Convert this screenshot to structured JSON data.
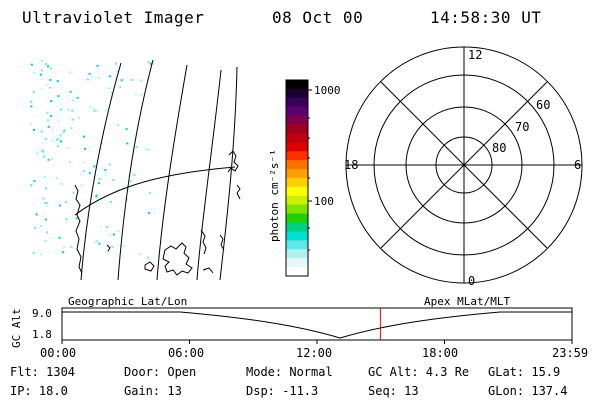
{
  "header": {
    "instrument": "Ultraviolet Imager",
    "date": "08 Oct 00",
    "time": "14:58:30 UT"
  },
  "colorbar": {
    "unit_label": "photon cm⁻²s⁻¹",
    "ticks": [
      "1000",
      "100"
    ],
    "colors": [
      "#000000",
      "#1a0030",
      "#3a0058",
      "#5a0070",
      "#80004a",
      "#a00020",
      "#c00010",
      "#e00000",
      "#ff3000",
      "#ff7000",
      "#ffa000",
      "#ffd000",
      "#ffff00",
      "#c8f000",
      "#80e000",
      "#20d000",
      "#00d080",
      "#00e0d0",
      "#60e8e8",
      "#b0f0f0",
      "#e8f8f8",
      "#ffffff"
    ]
  },
  "geo_map": {
    "label": "Geographic Lat/Lon"
  },
  "polar": {
    "label": "Apex MLat/MLT",
    "mlt_labels": {
      "top": "12",
      "left": "18",
      "right": "6",
      "bottom": "0"
    },
    "lat_labels": [
      "60",
      "70",
      "80"
    ]
  },
  "timeline": {
    "ylabel": "GC Alt",
    "y_ticks": [
      "9.0",
      "1.8"
    ],
    "x_ticks": [
      "00:00",
      "06:00",
      "12:00",
      "18:00",
      "23:59"
    ],
    "marker_time": "14:58:30",
    "marker_color": "#ff0000"
  },
  "info": {
    "flt": "Flt: 1304",
    "ip": "IP: 18.0",
    "door": "Door: Open",
    "gain": "Gain: 13",
    "mode": "Mode: Normal",
    "dsp": "Dsp:  -11.3",
    "gcalt": "GC Alt: 4.3 Re",
    "seq": "Seq: 13",
    "glat": "GLat:  15.9",
    "glon": "GLon: 137.4"
  }
}
